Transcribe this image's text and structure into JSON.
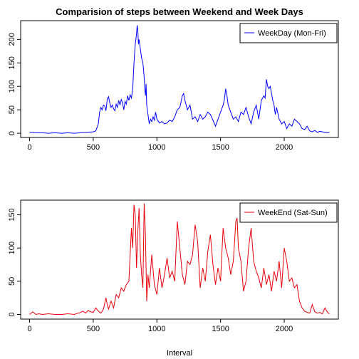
{
  "chart_data": [
    {
      "type": "line",
      "title": "Comparision of steps between Weekend and Week Days",
      "xlabel": "",
      "ylabel": "",
      "xlim": [
        -70,
        2425
      ],
      "ylim": [
        -9,
        240
      ],
      "xticks": [
        "0",
        "500",
        "1000",
        "1500",
        "2000"
      ],
      "xtick_values": [
        0,
        500,
        1000,
        1500,
        2000
      ],
      "yticks": [
        "0",
        "50",
        "100",
        "150",
        "200"
      ],
      "ytick_values": [
        0,
        50,
        100,
        150,
        200
      ],
      "legend": {
        "position": "top-right",
        "entries": [
          "WeekDay (Mon-Fri)"
        ]
      },
      "color": "#0000ff",
      "series": [
        {
          "name": "WeekDay (Mon-Fri)",
          "x": [
            0,
            50,
            100,
            150,
            200,
            250,
            300,
            350,
            400,
            450,
            500,
            520,
            540,
            550,
            560,
            570,
            580,
            590,
            600,
            610,
            620,
            630,
            640,
            650,
            660,
            670,
            680,
            690,
            700,
            710,
            720,
            730,
            740,
            750,
            760,
            770,
            780,
            790,
            800,
            810,
            820,
            830,
            835,
            840,
            845,
            850,
            855,
            860,
            870,
            880,
            890,
            900,
            905,
            910,
            915,
            920,
            930,
            940,
            950,
            960,
            970,
            980,
            990,
            1000,
            1020,
            1040,
            1060,
            1080,
            1100,
            1120,
            1140,
            1160,
            1180,
            1200,
            1210,
            1220,
            1240,
            1260,
            1280,
            1300,
            1320,
            1340,
            1360,
            1380,
            1400,
            1420,
            1440,
            1460,
            1480,
            1500,
            1520,
            1530,
            1540,
            1550,
            1560,
            1580,
            1600,
            1620,
            1640,
            1660,
            1680,
            1700,
            1720,
            1740,
            1760,
            1780,
            1800,
            1820,
            1840,
            1850,
            1860,
            1870,
            1880,
            1890,
            1900,
            1910,
            1920,
            1930,
            1940,
            1960,
            1980,
            2000,
            2020,
            2040,
            2060,
            2080,
            2100,
            2120,
            2140,
            2160,
            2180,
            2200,
            2220,
            2240,
            2260,
            2280,
            2300,
            2320,
            2340,
            2355
          ],
          "values": [
            2,
            1,
            1,
            0,
            1,
            0,
            1,
            0,
            1,
            2,
            3,
            5,
            20,
            45,
            55,
            50,
            60,
            58,
            48,
            72,
            78,
            65,
            55,
            60,
            52,
            48,
            62,
            55,
            70,
            60,
            72,
            65,
            50,
            68,
            62,
            80,
            70,
            82,
            75,
            95,
            150,
            190,
            200,
            212,
            230,
            220,
            190,
            200,
            180,
            160,
            150,
            120,
            95,
            80,
            105,
            60,
            40,
            20,
            30,
            25,
            35,
            28,
            45,
            30,
            22,
            25,
            20,
            22,
            28,
            25,
            35,
            50,
            55,
            80,
            85,
            70,
            50,
            60,
            30,
            35,
            25,
            40,
            30,
            35,
            45,
            40,
            28,
            15,
            30,
            45,
            60,
            72,
            95,
            80,
            60,
            45,
            30,
            35,
            25,
            45,
            40,
            55,
            35,
            20,
            45,
            60,
            30,
            70,
            80,
            75,
            115,
            100,
            95,
            100,
            85,
            70,
            60,
            40,
            55,
            30,
            20,
            25,
            10,
            20,
            15,
            30,
            25,
            20,
            10,
            8,
            15,
            5,
            3,
            6,
            2,
            4,
            3,
            2,
            1,
            2
          ]
        }
      ]
    },
    {
      "type": "line",
      "title": "",
      "xlabel": "Interval",
      "ylabel": "",
      "xlim": [
        -70,
        2425
      ],
      "ylim": [
        -7,
        172
      ],
      "xticks": [
        "0",
        "500",
        "1000",
        "1500",
        "2000"
      ],
      "xtick_values": [
        0,
        500,
        1000,
        1500,
        2000
      ],
      "yticks": [
        "0",
        "50",
        "100",
        "150"
      ],
      "ytick_values": [
        0,
        50,
        100,
        150
      ],
      "legend": {
        "position": "top-right",
        "entries": [
          "WeekEnd (Sat-Sun)"
        ]
      },
      "color": "#e8000b",
      "series": [
        {
          "name": "WeekEnd (Sat-Sun)",
          "x": [
            0,
            25,
            50,
            75,
            100,
            150,
            200,
            250,
            300,
            350,
            400,
            420,
            440,
            460,
            480,
            500,
            520,
            540,
            560,
            580,
            600,
            610,
            620,
            640,
            660,
            680,
            700,
            720,
            740,
            760,
            780,
            800,
            810,
            820,
            830,
            840,
            850,
            860,
            870,
            880,
            890,
            900,
            910,
            920,
            930,
            940,
            960,
            980,
            1000,
            1020,
            1040,
            1060,
            1080,
            1100,
            1120,
            1140,
            1160,
            1180,
            1200,
            1220,
            1240,
            1260,
            1280,
            1300,
            1320,
            1340,
            1360,
            1380,
            1400,
            1420,
            1440,
            1460,
            1480,
            1500,
            1520,
            1540,
            1560,
            1580,
            1600,
            1620,
            1630,
            1640,
            1660,
            1680,
            1700,
            1720,
            1740,
            1760,
            1780,
            1800,
            1820,
            1840,
            1860,
            1880,
            1900,
            1920,
            1940,
            1960,
            1980,
            2000,
            2020,
            2040,
            2060,
            2080,
            2100,
            2120,
            2140,
            2160,
            2180,
            2200,
            2220,
            2240,
            2260,
            2280,
            2300,
            2320,
            2340,
            2355
          ],
          "values": [
            0,
            4,
            0,
            1,
            0,
            1,
            0,
            0,
            1,
            0,
            3,
            5,
            2,
            6,
            4,
            3,
            10,
            5,
            2,
            8,
            25,
            15,
            8,
            20,
            10,
            30,
            25,
            40,
            35,
            45,
            50,
            130,
            100,
            165,
            150,
            70,
            125,
            160,
            90,
            60,
            40,
            167,
            120,
            20,
            60,
            40,
            90,
            45,
            30,
            70,
            40,
            60,
            85,
            55,
            65,
            50,
            140,
            100,
            60,
            45,
            80,
            75,
            90,
            135,
            110,
            40,
            70,
            50,
            95,
            120,
            75,
            45,
            70,
            50,
            130,
            100,
            85,
            60,
            80,
            140,
            145,
            100,
            80,
            35,
            50,
            100,
            130,
            80,
            65,
            55,
            40,
            70,
            45,
            60,
            35,
            65,
            50,
            80,
            40,
            100,
            80,
            50,
            55,
            40,
            45,
            20,
            10,
            5,
            3,
            2,
            15,
            4,
            2,
            3,
            1,
            10,
            3,
            1
          ]
        }
      ]
    }
  ]
}
